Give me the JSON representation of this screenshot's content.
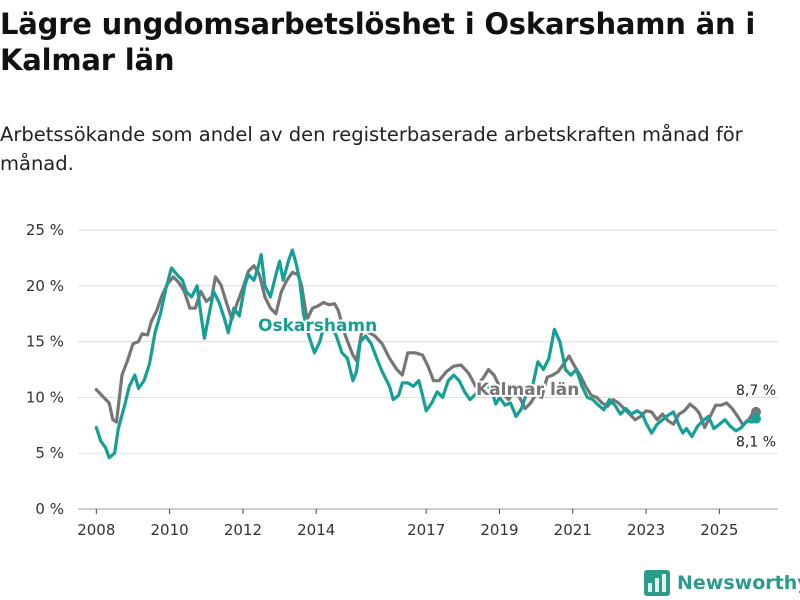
{
  "title": "Lägre ungdomsarbetslöshet i Oskarshamn än i Kalmar län",
  "subtitle": "Arbetssökande som andel av den registerbaserade arbetskraften månad för månad.",
  "brand": {
    "name": "Newsworthy",
    "color": "#2b9b8c"
  },
  "chart_data": {
    "type": "line",
    "title": "Lägre ungdomsarbetslöshet i Oskarshamn än i Kalmar län",
    "xlabel": "",
    "ylabel": "",
    "ylim": [
      0,
      25
    ],
    "xlim": [
      2007.5,
      2026.6
    ],
    "y_ticks": [
      0,
      5,
      10,
      15,
      20,
      25
    ],
    "y_tick_labels": [
      "0 %",
      "5 %",
      "10 %",
      "15 %",
      "20 %",
      "25 %"
    ],
    "x_ticks": [
      2008,
      2010,
      2012,
      2014,
      2017,
      2019,
      2021,
      2023,
      2025
    ],
    "x_tick_labels": [
      "2008",
      "2010",
      "2012",
      "2014",
      "2017",
      "2019",
      "2021",
      "2023",
      "2025"
    ],
    "grid": true,
    "legend": "inline labels",
    "series": [
      {
        "name": "Kalmar län",
        "color": "#767676",
        "end_label": "8,7 %",
        "points": [
          [
            2008.0,
            10.7
          ],
          [
            2008.2,
            10.0
          ],
          [
            2008.35,
            9.5
          ],
          [
            2008.45,
            8.0
          ],
          [
            2008.55,
            7.8
          ],
          [
            2008.7,
            12.0
          ],
          [
            2008.85,
            13.3
          ],
          [
            2009.0,
            14.8
          ],
          [
            2009.15,
            15.0
          ],
          [
            2009.25,
            15.7
          ],
          [
            2009.4,
            15.6
          ],
          [
            2009.5,
            16.8
          ],
          [
            2009.65,
            17.8
          ],
          [
            2009.8,
            19.2
          ],
          [
            2009.95,
            20.2
          ],
          [
            2010.1,
            20.8
          ],
          [
            2010.25,
            20.3
          ],
          [
            2010.4,
            19.5
          ],
          [
            2010.55,
            18.0
          ],
          [
            2010.7,
            18.0
          ],
          [
            2010.85,
            19.5
          ],
          [
            2011.0,
            18.6
          ],
          [
            2011.15,
            19.0
          ],
          [
            2011.25,
            20.8
          ],
          [
            2011.4,
            20.1
          ],
          [
            2011.55,
            18.5
          ],
          [
            2011.7,
            17.0
          ],
          [
            2011.85,
            18.5
          ],
          [
            2012.0,
            19.8
          ],
          [
            2012.15,
            21.3
          ],
          [
            2012.3,
            21.8
          ],
          [
            2012.45,
            21.0
          ],
          [
            2012.6,
            19.0
          ],
          [
            2012.75,
            18.0
          ],
          [
            2012.9,
            17.5
          ],
          [
            2013.05,
            19.5
          ],
          [
            2013.2,
            20.5
          ],
          [
            2013.35,
            21.2
          ],
          [
            2013.5,
            21.0
          ],
          [
            2013.6,
            20.0
          ],
          [
            2013.75,
            17.0
          ],
          [
            2013.9,
            18.0
          ],
          [
            2014.05,
            18.2
          ],
          [
            2014.2,
            18.5
          ],
          [
            2014.35,
            18.3
          ],
          [
            2014.5,
            18.4
          ],
          [
            2014.6,
            17.8
          ],
          [
            2014.8,
            15.5
          ],
          [
            2015.0,
            13.8
          ],
          [
            2015.1,
            13.3
          ],
          [
            2015.25,
            16.0
          ],
          [
            2015.4,
            15.9
          ],
          [
            2015.6,
            15.5
          ],
          [
            2015.8,
            14.8
          ],
          [
            2016.0,
            13.5
          ],
          [
            2016.2,
            12.5
          ],
          [
            2016.35,
            12.0
          ],
          [
            2016.5,
            14.0
          ],
          [
            2016.7,
            14.0
          ],
          [
            2016.9,
            13.8
          ],
          [
            2017.05,
            12.8
          ],
          [
            2017.2,
            11.5
          ],
          [
            2017.35,
            11.5
          ],
          [
            2017.55,
            12.3
          ],
          [
            2017.75,
            12.8
          ],
          [
            2017.95,
            12.9
          ],
          [
            2018.15,
            12.2
          ],
          [
            2018.35,
            11.0
          ],
          [
            2018.55,
            11.7
          ],
          [
            2018.7,
            12.5
          ],
          [
            2018.85,
            12.0
          ],
          [
            2019.0,
            11.0
          ],
          [
            2019.1,
            10.3
          ],
          [
            2019.25,
            9.8
          ],
          [
            2019.4,
            10.5
          ],
          [
            2019.55,
            10.0
          ],
          [
            2019.7,
            9.0
          ],
          [
            2019.85,
            9.5
          ],
          [
            2020.0,
            10.3
          ],
          [
            2020.15,
            10.0
          ],
          [
            2020.3,
            11.8
          ],
          [
            2020.45,
            12.0
          ],
          [
            2020.6,
            12.3
          ],
          [
            2020.75,
            13.0
          ],
          [
            2020.9,
            13.7
          ],
          [
            2021.05,
            12.8
          ],
          [
            2021.2,
            12.0
          ],
          [
            2021.35,
            11.0
          ],
          [
            2021.5,
            10.2
          ],
          [
            2021.65,
            10.0
          ],
          [
            2021.8,
            9.5
          ],
          [
            2021.95,
            9.2
          ],
          [
            2022.1,
            9.8
          ],
          [
            2022.25,
            9.5
          ],
          [
            2022.4,
            9.0
          ],
          [
            2022.55,
            8.5
          ],
          [
            2022.7,
            8.0
          ],
          [
            2022.85,
            8.3
          ],
          [
            2023.0,
            8.8
          ],
          [
            2023.15,
            8.7
          ],
          [
            2023.3,
            8.0
          ],
          [
            2023.45,
            8.5
          ],
          [
            2023.6,
            7.9
          ],
          [
            2023.75,
            7.6
          ],
          [
            2023.9,
            8.5
          ],
          [
            2024.05,
            8.8
          ],
          [
            2024.2,
            9.4
          ],
          [
            2024.35,
            9.0
          ],
          [
            2024.45,
            8.6
          ],
          [
            2024.6,
            7.3
          ],
          [
            2024.75,
            8.3
          ],
          [
            2024.9,
            9.3
          ],
          [
            2025.05,
            9.3
          ],
          [
            2025.2,
            9.5
          ],
          [
            2025.35,
            9.0
          ],
          [
            2025.5,
            8.3
          ],
          [
            2025.65,
            7.5
          ],
          [
            2025.8,
            8.0
          ],
          [
            2025.95,
            8.8
          ],
          [
            2026.0,
            8.7
          ]
        ]
      },
      {
        "name": "Oskarshamn",
        "color": "#14a095",
        "end_label": "8,1 %",
        "points": [
          [
            2008.0,
            7.3
          ],
          [
            2008.12,
            6.1
          ],
          [
            2008.25,
            5.5
          ],
          [
            2008.35,
            4.6
          ],
          [
            2008.5,
            5.0
          ],
          [
            2008.6,
            7.2
          ],
          [
            2008.75,
            9.0
          ],
          [
            2008.9,
            11.0
          ],
          [
            2009.05,
            12.0
          ],
          [
            2009.15,
            10.8
          ],
          [
            2009.3,
            11.5
          ],
          [
            2009.45,
            13.0
          ],
          [
            2009.6,
            15.8
          ],
          [
            2009.75,
            17.5
          ],
          [
            2009.9,
            19.8
          ],
          [
            2010.05,
            21.6
          ],
          [
            2010.2,
            21.0
          ],
          [
            2010.35,
            20.5
          ],
          [
            2010.45,
            19.5
          ],
          [
            2010.6,
            19.0
          ],
          [
            2010.75,
            20.0
          ],
          [
            2010.85,
            17.5
          ],
          [
            2010.95,
            15.3
          ],
          [
            2011.05,
            17.0
          ],
          [
            2011.2,
            19.5
          ],
          [
            2011.35,
            18.5
          ],
          [
            2011.5,
            17.0
          ],
          [
            2011.6,
            15.8
          ],
          [
            2011.75,
            18.0
          ],
          [
            2011.9,
            17.3
          ],
          [
            2012.05,
            20.0
          ],
          [
            2012.15,
            21.0
          ],
          [
            2012.3,
            20.5
          ],
          [
            2012.4,
            21.5
          ],
          [
            2012.5,
            22.8
          ],
          [
            2012.6,
            20.0
          ],
          [
            2012.75,
            19.0
          ],
          [
            2012.9,
            21.0
          ],
          [
            2013.0,
            22.2
          ],
          [
            2013.1,
            20.5
          ],
          [
            2013.25,
            22.3
          ],
          [
            2013.35,
            23.2
          ],
          [
            2013.45,
            22.0
          ],
          [
            2013.55,
            20.5
          ],
          [
            2013.65,
            17.5
          ],
          [
            2013.8,
            15.5
          ],
          [
            2013.95,
            14.0
          ],
          [
            2014.1,
            15.0
          ],
          [
            2014.25,
            17.0
          ],
          [
            2014.4,
            16.5
          ],
          [
            2014.55,
            15.5
          ],
          [
            2014.7,
            14.0
          ],
          [
            2014.85,
            13.5
          ],
          [
            2015.0,
            11.5
          ],
          [
            2015.1,
            12.3
          ],
          [
            2015.2,
            15.0
          ],
          [
            2015.35,
            15.5
          ],
          [
            2015.5,
            14.8
          ],
          [
            2015.65,
            13.5
          ],
          [
            2015.8,
            12.3
          ],
          [
            2016.0,
            11.0
          ],
          [
            2016.1,
            9.8
          ],
          [
            2016.25,
            10.2
          ],
          [
            2016.35,
            11.3
          ],
          [
            2016.5,
            11.3
          ],
          [
            2016.65,
            11.0
          ],
          [
            2016.8,
            11.5
          ],
          [
            2016.9,
            10.2
          ],
          [
            2017.0,
            8.8
          ],
          [
            2017.15,
            9.5
          ],
          [
            2017.3,
            10.5
          ],
          [
            2017.45,
            10.0
          ],
          [
            2017.6,
            11.5
          ],
          [
            2017.75,
            12.0
          ],
          [
            2017.9,
            11.5
          ],
          [
            2018.05,
            10.5
          ],
          [
            2018.2,
            9.8
          ],
          [
            2018.35,
            10.3
          ],
          [
            2018.5,
            10.8
          ],
          [
            2018.65,
            11.2
          ],
          [
            2018.8,
            10.5
          ],
          [
            2018.9,
            9.4
          ],
          [
            2019.0,
            10.0
          ],
          [
            2019.15,
            9.3
          ],
          [
            2019.3,
            9.5
          ],
          [
            2019.45,
            8.3
          ],
          [
            2019.6,
            9.0
          ],
          [
            2019.75,
            10.5
          ],
          [
            2019.9,
            11.0
          ],
          [
            2020.05,
            13.2
          ],
          [
            2020.2,
            12.5
          ],
          [
            2020.35,
            13.5
          ],
          [
            2020.5,
            16.1
          ],
          [
            2020.65,
            15.0
          ],
          [
            2020.8,
            12.5
          ],
          [
            2020.95,
            12.0
          ],
          [
            2021.1,
            12.5
          ],
          [
            2021.25,
            11.0
          ],
          [
            2021.4,
            10.0
          ],
          [
            2021.55,
            9.8
          ],
          [
            2021.7,
            9.3
          ],
          [
            2021.85,
            8.9
          ],
          [
            2022.0,
            9.8
          ],
          [
            2022.15,
            9.3
          ],
          [
            2022.3,
            8.5
          ],
          [
            2022.45,
            9.0
          ],
          [
            2022.6,
            8.5
          ],
          [
            2022.75,
            8.8
          ],
          [
            2022.9,
            8.5
          ],
          [
            2023.0,
            7.7
          ],
          [
            2023.15,
            6.8
          ],
          [
            2023.3,
            7.6
          ],
          [
            2023.45,
            8.0
          ],
          [
            2023.6,
            8.4
          ],
          [
            2023.75,
            8.7
          ],
          [
            2023.9,
            7.5
          ],
          [
            2024.0,
            6.8
          ],
          [
            2024.1,
            7.2
          ],
          [
            2024.25,
            6.5
          ],
          [
            2024.4,
            7.4
          ],
          [
            2024.55,
            7.9
          ],
          [
            2024.7,
            8.3
          ],
          [
            2024.85,
            7.2
          ],
          [
            2025.0,
            7.6
          ],
          [
            2025.15,
            8.0
          ],
          [
            2025.3,
            7.4
          ],
          [
            2025.45,
            7.0
          ],
          [
            2025.6,
            7.3
          ],
          [
            2025.75,
            7.9
          ],
          [
            2025.9,
            7.8
          ],
          [
            2026.0,
            8.1
          ]
        ]
      }
    ]
  }
}
